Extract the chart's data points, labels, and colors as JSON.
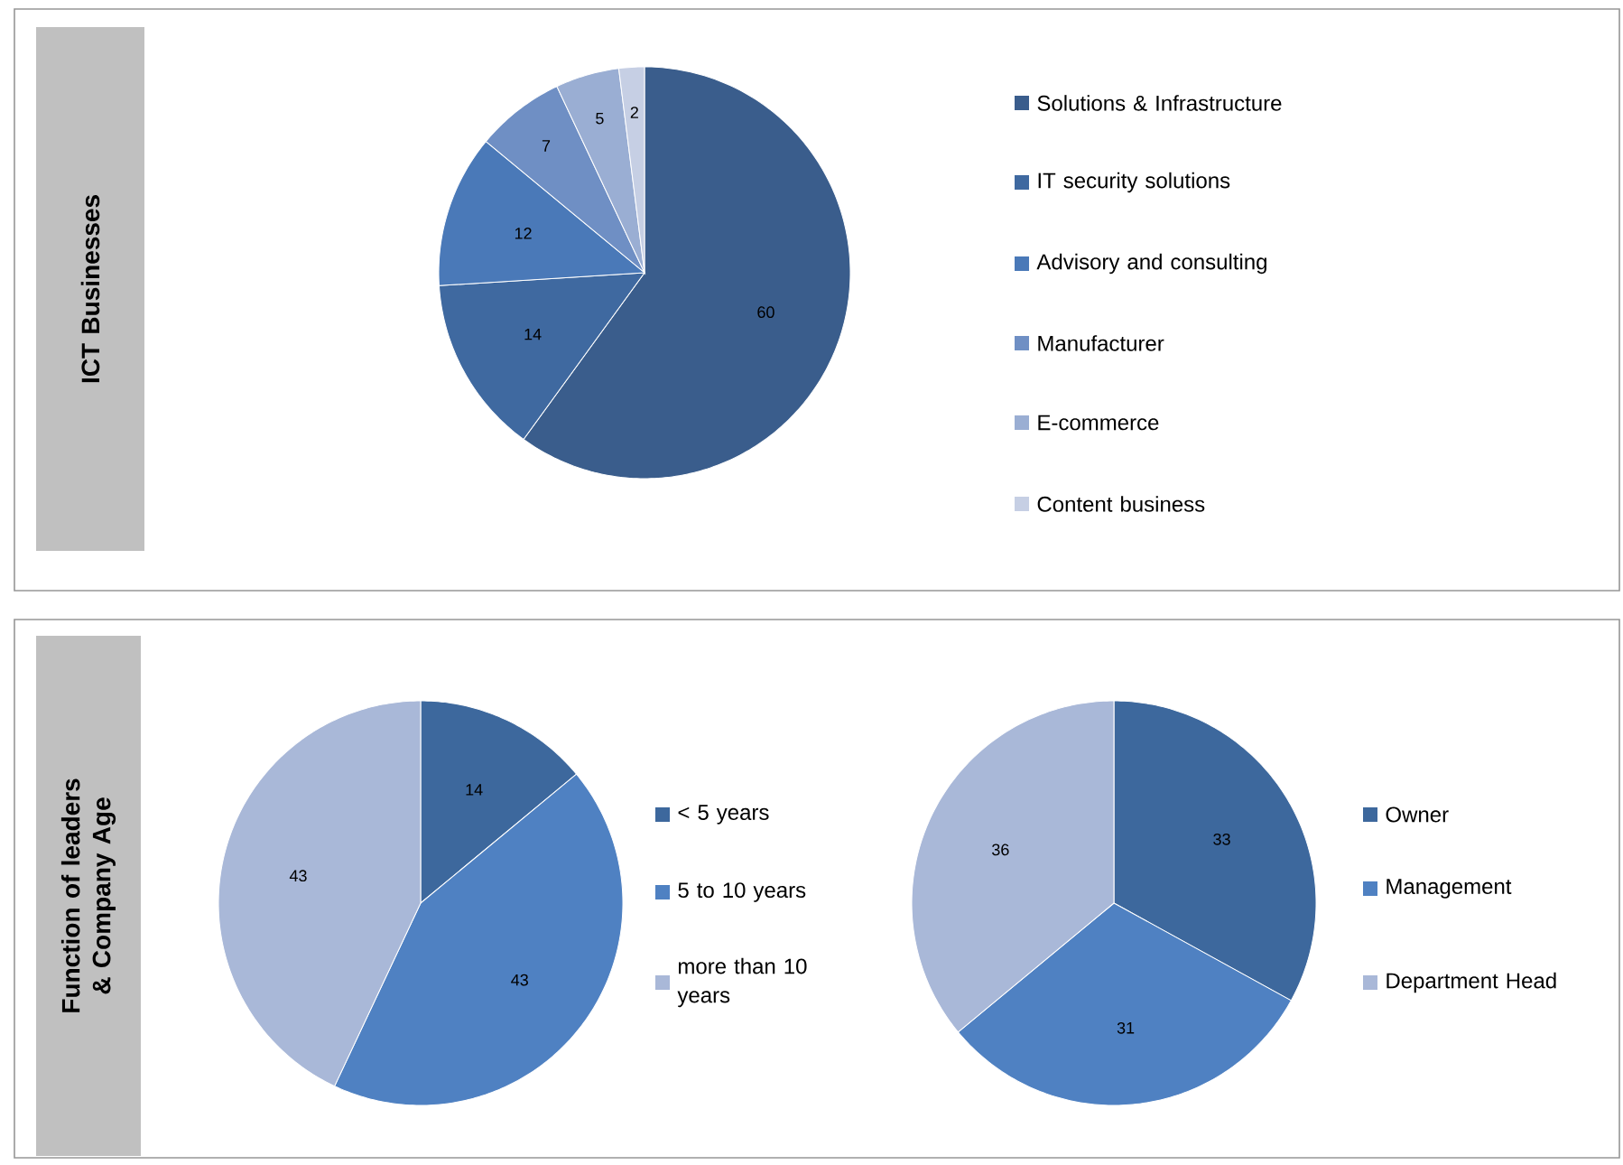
{
  "chart_data": [
    {
      "type": "pie",
      "title": "ICT Businesses",
      "categories": [
        "Solutions & Infrastructure",
        "IT security solutions",
        "Advisory and consulting",
        "Manufacturer",
        "E-commerce",
        "Content business"
      ],
      "values": [
        60,
        14,
        12,
        7,
        5,
        2
      ],
      "colors": [
        "#3a5d8c",
        "#3f69a0",
        "#4a79b8",
        "#6f8fc4",
        "#9aaed3",
        "#c6cfe4"
      ],
      "data_labels": true,
      "legend": "right"
    },
    {
      "type": "pie",
      "title": "Function of leaders & Company Age",
      "categories": [
        "< 5 years",
        "5 to 10 years",
        "more than 10 years"
      ],
      "values": [
        14,
        43,
        43
      ],
      "colors": [
        "#3d689d",
        "#4f81c2",
        "#a9b8d8"
      ],
      "data_labels": true,
      "legend": "right"
    },
    {
      "type": "pie",
      "categories": [
        "Owner",
        "Management",
        "Department Head"
      ],
      "values": [
        33,
        31,
        36
      ],
      "colors": [
        "#3d689d",
        "#4f81c2",
        "#a9b8d8"
      ],
      "data_labels": true,
      "legend": "right"
    }
  ]
}
